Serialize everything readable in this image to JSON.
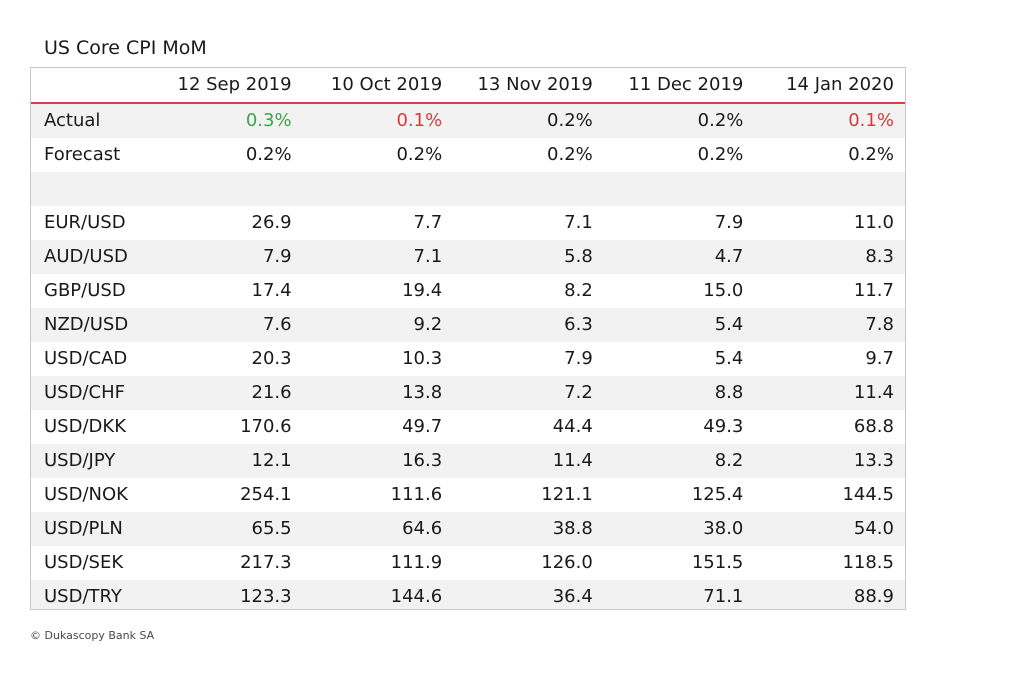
{
  "chart_data": {
    "type": "table",
    "title": "US Core CPI MoM",
    "columns": [
      "12 Sep 2019",
      "10 Oct 2019",
      "13 Nov 2019",
      "11 Dec 2019",
      "14 Jan 2020"
    ],
    "rows": [
      {
        "label": "Actual",
        "values": [
          "0.3%",
          "0.1%",
          "0.2%",
          "0.2%",
          "0.1%"
        ],
        "tones": [
          "pos",
          "neg",
          "",
          "",
          "neg"
        ]
      },
      {
        "label": "Forecast",
        "values": [
          "0.2%",
          "0.2%",
          "0.2%",
          "0.2%",
          "0.2%"
        ],
        "tones": [
          "",
          "",
          "",
          "",
          ""
        ]
      },
      {
        "label": "",
        "values": [
          "",
          "",
          "",
          "",
          ""
        ],
        "tones": [
          "",
          "",
          "",
          "",
          ""
        ]
      },
      {
        "label": "EUR/USD",
        "values": [
          26.9,
          7.7,
          7.1,
          7.9,
          11.0
        ]
      },
      {
        "label": "AUD/USD",
        "values": [
          7.9,
          7.1,
          5.8,
          4.7,
          8.3
        ]
      },
      {
        "label": "GBP/USD",
        "values": [
          17.4,
          19.4,
          8.2,
          15.0,
          11.7
        ]
      },
      {
        "label": "NZD/USD",
        "values": [
          7.6,
          9.2,
          6.3,
          5.4,
          7.8
        ]
      },
      {
        "label": "USD/CAD",
        "values": [
          20.3,
          10.3,
          7.9,
          5.4,
          9.7
        ]
      },
      {
        "label": "USD/CHF",
        "values": [
          21.6,
          13.8,
          7.2,
          8.8,
          11.4
        ]
      },
      {
        "label": "USD/DKK",
        "values": [
          170.6,
          49.7,
          44.4,
          49.3,
          68.8
        ]
      },
      {
        "label": "USD/JPY",
        "values": [
          12.1,
          16.3,
          11.4,
          8.2,
          13.3
        ]
      },
      {
        "label": "USD/NOK",
        "values": [
          254.1,
          111.6,
          121.1,
          125.4,
          144.5
        ]
      },
      {
        "label": "USD/PLN",
        "values": [
          65.5,
          64.6,
          38.8,
          38.0,
          54.0
        ]
      },
      {
        "label": "USD/SEK",
        "values": [
          217.3,
          111.9,
          126.0,
          151.5,
          118.5
        ]
      },
      {
        "label": "USD/TRY",
        "values": [
          123.3,
          144.6,
          36.4,
          71.1,
          88.9
        ]
      }
    ],
    "colors": {
      "positive": "#3aa64a",
      "negative": "#d93a3a",
      "header_rule": "#d94040",
      "stripe": "#f2f2f2"
    }
  },
  "footer": "© Dukascopy Bank SA"
}
